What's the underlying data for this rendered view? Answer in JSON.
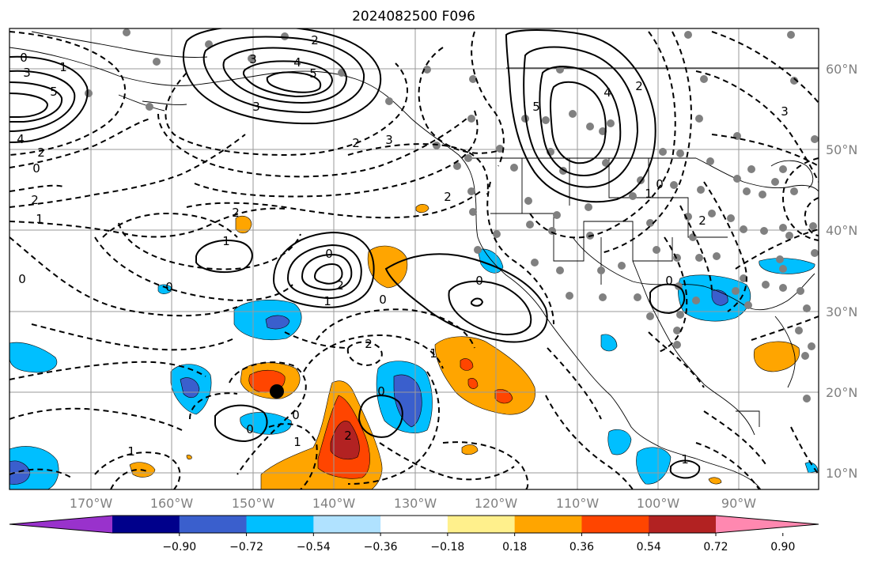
{
  "title": "2024082500 F096",
  "lat_labels": [
    "60°N",
    "50°N",
    "40°N",
    "30°N",
    "20°N",
    "10°N"
  ],
  "lon_labels": [
    "170°W",
    "160°W",
    "150°W",
    "140°W",
    "130°W",
    "120°W",
    "110°W",
    "100°W",
    "90°W"
  ],
  "colorbar": {
    "ticks": [
      "−0.90",
      "−0.72",
      "−0.54",
      "−0.36",
      "−0.18",
      "0.18",
      "0.36",
      "0.54",
      "0.72",
      "0.90"
    ],
    "colors": [
      "#9932cc",
      "#00008b",
      "#3a5fcd",
      "#00bfff",
      "#b0e2ff",
      "#ffffff",
      "#fff08c",
      "#ffa500",
      "#ff4500",
      "#b22222",
      "#ff88b0"
    ]
  },
  "contour_labels": [
    "0",
    "1",
    "3",
    "5",
    "4",
    "2",
    "0",
    "2",
    "1",
    "2",
    "3",
    "4",
    "5",
    "3",
    "2",
    "3",
    "5",
    "4",
    "2",
    "1",
    "0",
    "2",
    "2",
    "1",
    "0",
    "2",
    "1",
    "0",
    "0",
    "0",
    "0",
    "2",
    "1",
    "0",
    "1",
    "0",
    "0",
    "2",
    "1",
    "2",
    "3",
    "0",
    "1"
  ],
  "colors": {
    "contour": "#000000",
    "grid": "#9a9a9a",
    "station": "#808080"
  }
}
